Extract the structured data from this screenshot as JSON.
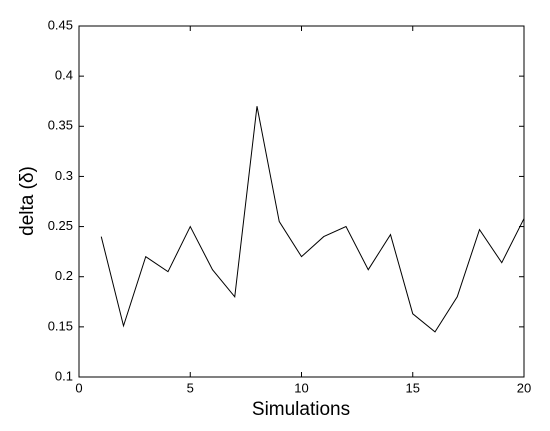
{
  "chart_data": {
    "type": "line",
    "x_label": "Simulations",
    "y_label": "delta (δ)",
    "x": [
      1,
      2,
      3,
      4,
      5,
      6,
      7,
      8,
      9,
      10,
      11,
      12,
      13,
      14,
      15,
      16,
      17,
      18,
      19,
      20
    ],
    "series": [
      {
        "color": "#000000",
        "values": [
          0.24,
          0.151,
          0.22,
          0.205,
          0.25,
          0.207,
          0.18,
          0.37,
          0.255,
          0.22,
          0.24,
          0.25,
          0.207,
          0.242,
          0.163,
          0.145,
          0.18,
          0.247,
          0.214,
          0.258
        ]
      }
    ],
    "xlim": [
      0,
      20
    ],
    "xticks": [
      0,
      5,
      10,
      15,
      20
    ],
    "ylim": [
      0.1,
      0.45
    ],
    "yticks": [
      0.1,
      0.15,
      0.2,
      0.25,
      0.3,
      0.35,
      0.4,
      0.45
    ],
    "grid": false
  }
}
